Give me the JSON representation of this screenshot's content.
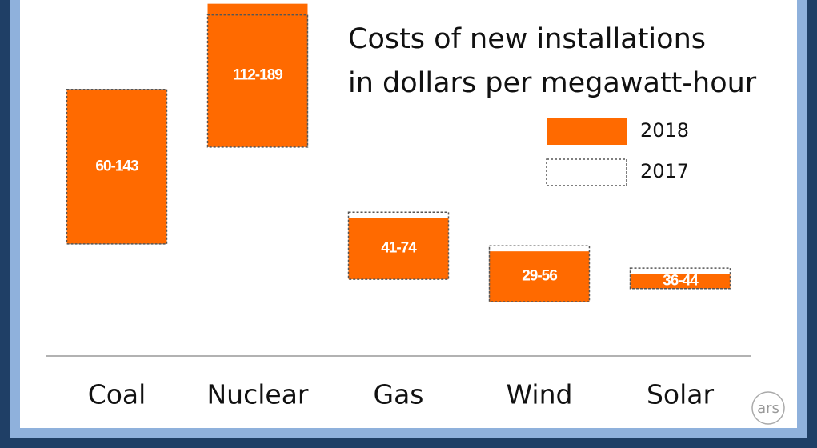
{
  "chart_data": {
    "type": "range_bar",
    "title": "Costs of new installations in dollars per megawatt-hour",
    "categories": [
      "Coal",
      "Nuclear",
      "Gas",
      "Wind",
      "Solar"
    ],
    "series": [
      {
        "name": "2018",
        "color": "#ff6a00",
        "style": "filled",
        "values": [
          [
            60,
            143
          ],
          [
            112,
            189
          ],
          [
            41,
            74
          ],
          [
            29,
            56
          ],
          [
            36,
            44
          ]
        ],
        "value_labels": [
          "60-143",
          "112-189",
          "41-74",
          "29-56",
          "36-44"
        ]
      },
      {
        "name": "2017",
        "color": "#555555",
        "style": "outline",
        "values": [
          [
            60,
            143
          ],
          [
            112,
            183
          ],
          [
            41,
            77
          ],
          [
            29,
            59
          ],
          [
            36,
            47
          ]
        ]
      }
    ],
    "ylim": [
      0,
      191
    ],
    "logo": "ars"
  }
}
